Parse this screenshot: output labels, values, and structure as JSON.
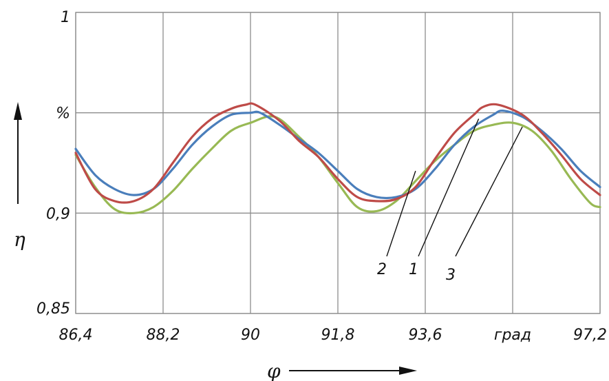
{
  "chart_data": {
    "type": "line",
    "title": "",
    "xlabel": "φ",
    "ylabel": "η",
    "x_ticks": [
      {
        "value": 86.4,
        "label": "86,4"
      },
      {
        "value": 88.2,
        "label": "88,2"
      },
      {
        "value": 90.0,
        "label": "90"
      },
      {
        "value": 91.8,
        "label": "91,8"
      },
      {
        "value": 93.6,
        "label": "93,6"
      },
      {
        "value": 95.4,
        "label": "град"
      },
      {
        "value": 97.2,
        "label": "97,2"
      }
    ],
    "y_ticks": [
      {
        "value": 0.85,
        "label": "0,85"
      },
      {
        "value": 0.9,
        "label": "0,9"
      },
      {
        "value": 0.95,
        "label": "%"
      },
      {
        "value": 1.0,
        "label": "1"
      }
    ],
    "xlim": [
      86.4,
      97.2
    ],
    "ylim": [
      0.85,
      1.0
    ],
    "grid": true,
    "colors": {
      "1": "#4a7ebb",
      "2": "#be4b48",
      "3": "#98b954"
    },
    "series": [
      {
        "name": "1",
        "x": [
          86.4,
          86.8,
          87.2,
          87.6,
          88.0,
          88.4,
          88.8,
          89.2,
          89.6,
          90.0,
          90.2,
          90.6,
          91.0,
          91.4,
          91.8,
          92.2,
          92.6,
          93.0,
          93.4,
          93.8,
          94.2,
          94.6,
          95.0,
          95.2,
          95.6,
          96.0,
          96.4,
          96.8,
          97.2
        ],
        "values": [
          0.932,
          0.919,
          0.912,
          0.909,
          0.912,
          0.922,
          0.934,
          0.943,
          0.949,
          0.95,
          0.95,
          0.944,
          0.937,
          0.93,
          0.921,
          0.912,
          0.908,
          0.908,
          0.912,
          0.922,
          0.934,
          0.943,
          0.949,
          0.951,
          0.948,
          0.941,
          0.932,
          0.921,
          0.913
        ]
      },
      {
        "name": "2",
        "x": [
          86.4,
          86.8,
          87.2,
          87.6,
          88.0,
          88.4,
          88.8,
          89.2,
          89.6,
          89.9,
          90.1,
          90.6,
          91.0,
          91.4,
          91.8,
          92.2,
          92.6,
          93.0,
          93.4,
          93.8,
          94.2,
          94.6,
          94.8,
          95.1,
          95.6,
          96.0,
          96.4,
          96.8,
          97.2
        ],
        "values": [
          0.93,
          0.912,
          0.906,
          0.906,
          0.912,
          0.925,
          0.938,
          0.947,
          0.952,
          0.954,
          0.954,
          0.946,
          0.936,
          0.928,
          0.917,
          0.908,
          0.906,
          0.907,
          0.913,
          0.927,
          0.94,
          0.949,
          0.953,
          0.954,
          0.949,
          0.94,
          0.929,
          0.917,
          0.909
        ]
      },
      {
        "name": "3",
        "x": [
          86.4,
          86.8,
          87.2,
          87.6,
          88.0,
          88.4,
          88.8,
          89.2,
          89.6,
          90.0,
          90.5,
          91.0,
          91.4,
          91.8,
          92.2,
          92.6,
          93.0,
          93.4,
          93.8,
          94.2,
          94.6,
          95.0,
          95.4,
          95.8,
          96.2,
          96.6,
          97.0,
          97.2
        ],
        "values": [
          0.929,
          0.913,
          0.902,
          0.9,
          0.903,
          0.911,
          0.922,
          0.932,
          0.941,
          0.945,
          0.948,
          0.938,
          0.928,
          0.915,
          0.903,
          0.901,
          0.906,
          0.916,
          0.926,
          0.934,
          0.941,
          0.944,
          0.945,
          0.941,
          0.931,
          0.917,
          0.905,
          0.903
        ]
      }
    ],
    "annotations": [
      {
        "label": "2",
        "series": "2"
      },
      {
        "label": "1",
        "series": "1"
      },
      {
        "label": "3",
        "series": "3"
      }
    ]
  }
}
